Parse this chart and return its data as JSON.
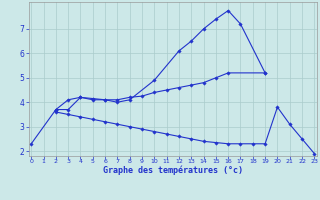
{
  "xlabel": "Graphe des températures (°c)",
  "bg_color": "#cce8e8",
  "grid_color": "#aacccc",
  "line_color": "#2233cc",
  "xmin": 0,
  "xmax": 23,
  "ymin": 1.8,
  "ymax": 8.1,
  "line1_x": [
    0,
    2,
    3,
    4,
    5,
    6,
    7,
    8,
    10,
    12,
    13,
    14,
    15,
    16,
    17,
    19
  ],
  "line1_y": [
    2.3,
    3.7,
    3.7,
    4.2,
    4.1,
    4.1,
    4.0,
    4.1,
    4.9,
    6.1,
    6.5,
    7.0,
    7.4,
    7.75,
    7.2,
    5.2
  ],
  "line2_x": [
    2,
    3,
    4,
    5,
    6,
    7,
    8,
    9,
    10,
    11,
    12,
    13,
    14,
    15,
    16,
    19
  ],
  "line2_y": [
    3.7,
    4.1,
    4.2,
    4.15,
    4.1,
    4.1,
    4.2,
    4.25,
    4.4,
    4.5,
    4.6,
    4.7,
    4.8,
    5.0,
    5.2,
    5.2
  ],
  "line3_x": [
    2,
    3,
    4,
    5,
    6,
    7,
    8,
    9,
    10,
    11,
    12,
    13,
    14,
    15,
    16,
    17,
    18,
    19,
    20,
    21,
    22,
    23
  ],
  "line3_y": [
    3.6,
    3.5,
    3.4,
    3.3,
    3.2,
    3.1,
    3.0,
    2.9,
    2.8,
    2.7,
    2.6,
    2.5,
    2.4,
    2.35,
    2.3,
    2.3,
    2.3,
    2.3,
    3.8,
    3.1,
    2.5,
    1.9
  ],
  "yticks": [
    2,
    3,
    4,
    5,
    6,
    7
  ],
  "xticks": [
    0,
    1,
    2,
    3,
    4,
    5,
    6,
    7,
    8,
    9,
    10,
    11,
    12,
    13,
    14,
    15,
    16,
    17,
    18,
    19,
    20,
    21,
    22,
    23
  ]
}
